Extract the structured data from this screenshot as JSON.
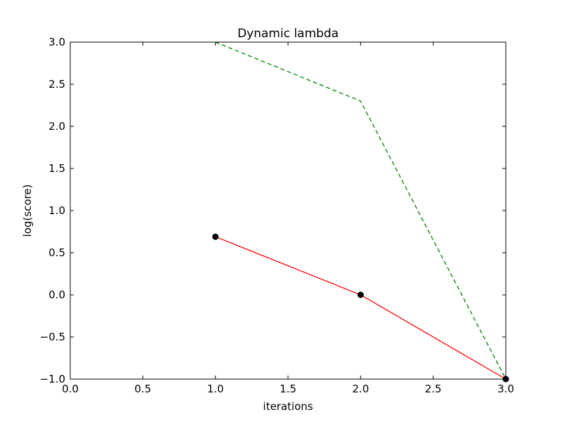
{
  "chart_data": {
    "type": "line",
    "title": "Dynamic lambda",
    "xlabel": "iterations",
    "ylabel": "log(score)",
    "xlim": [
      0.0,
      3.0
    ],
    "ylim": [
      -1.0,
      3.0
    ],
    "xticks": [
      0.0,
      0.5,
      1.0,
      1.5,
      2.0,
      2.5,
      3.0
    ],
    "xtick_labels": [
      "0.0",
      "0.5",
      "1.0",
      "1.5",
      "2.0",
      "2.5",
      "3.0"
    ],
    "yticks": [
      3.0,
      2.5,
      2.0,
      1.5,
      1.0,
      0.5,
      0.0,
      -0.5,
      -1.0
    ],
    "ytick_labels": [
      "3.0",
      "2.5",
      "2.0",
      "1.5",
      "1.0",
      "0.5",
      "0.0",
      "−0.5",
      "−1.0"
    ],
    "grid": false,
    "series": [
      {
        "x": [
          1,
          2,
          3
        ],
        "y": [
          0.69,
          0.0,
          -1.0
        ],
        "color": "#ff0000",
        "style": "solid",
        "marker_color": "#000000",
        "markers": true
      },
      {
        "x": [
          1,
          2,
          3
        ],
        "y": [
          3.0,
          2.3,
          -1.0
        ],
        "color": "#008000",
        "style": "dashed",
        "markers": false
      }
    ]
  }
}
